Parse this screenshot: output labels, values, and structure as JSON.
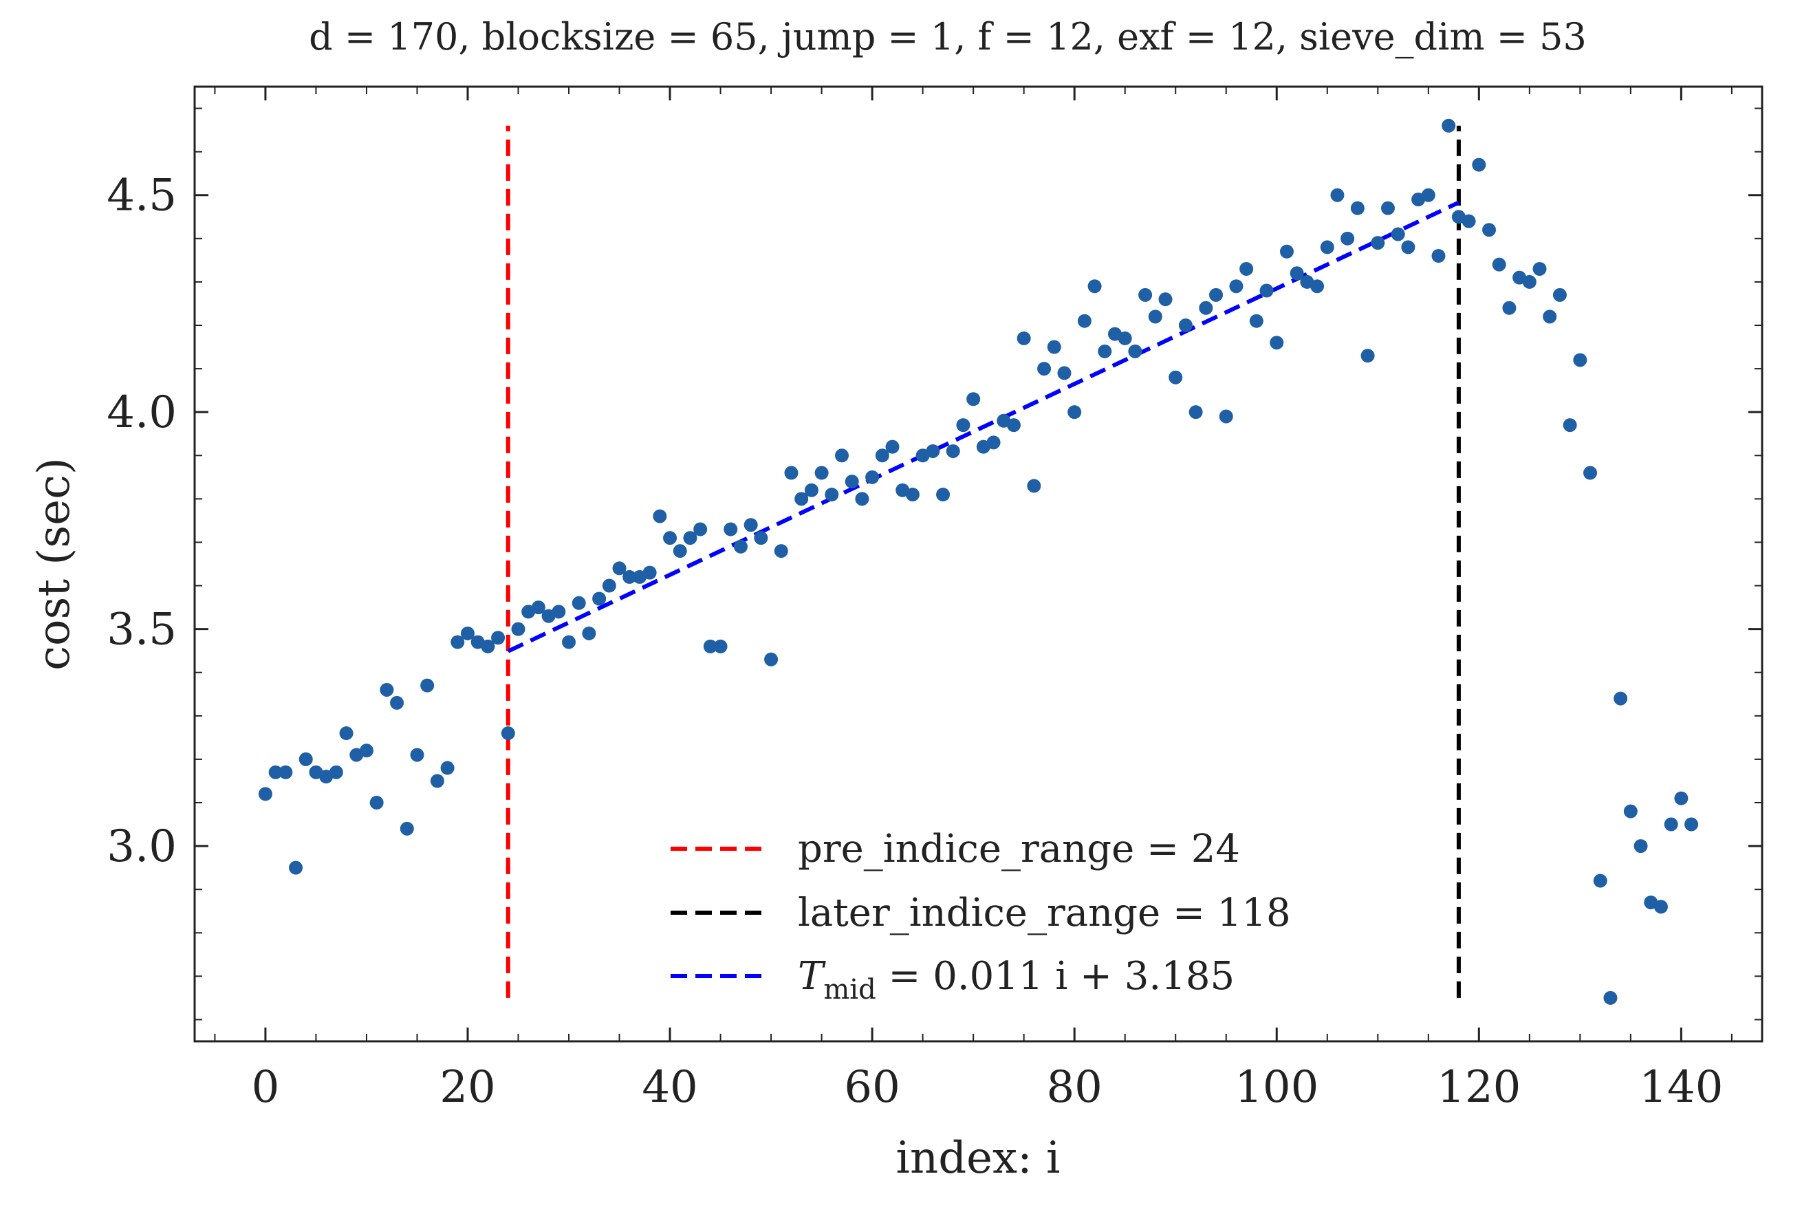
{
  "chart_data": {
    "type": "scatter",
    "title": "d = 170, blocksize = 65, jump = 1, f = 12, exf = 12, sieve_dim = 53",
    "xlabel": "index: i",
    "ylabel": "cost (sec)",
    "xlim": [
      -7,
      148
    ],
    "ylim": [
      2.55,
      4.75
    ],
    "xticks": [
      0,
      20,
      40,
      60,
      80,
      100,
      120,
      140
    ],
    "xtick_labels": [
      "0",
      "20",
      "40",
      "60",
      "80",
      "100",
      "120",
      "140"
    ],
    "yticks": [
      3.0,
      3.5,
      4.0,
      4.5
    ],
    "ytick_labels": [
      "3.0",
      "3.5",
      "4.0",
      "4.5"
    ],
    "grid": false,
    "legend_position": "bottom-center",
    "series": [
      {
        "kind": "scatter",
        "color": "#1f5fa6",
        "x": [
          0,
          1,
          2,
          3,
          4,
          5,
          6,
          7,
          8,
          9,
          10,
          11,
          12,
          13,
          14,
          15,
          16,
          17,
          18,
          19,
          20,
          21,
          22,
          23,
          24,
          25,
          26,
          27,
          28,
          29,
          30,
          31,
          32,
          33,
          34,
          35,
          36,
          37,
          38,
          39,
          40,
          41,
          42,
          43,
          44,
          45,
          46,
          47,
          48,
          49,
          50,
          51,
          52,
          53,
          54,
          55,
          56,
          57,
          58,
          59,
          60,
          61,
          62,
          63,
          64,
          65,
          66,
          67,
          68,
          69,
          70,
          71,
          72,
          73,
          74,
          75,
          76,
          77,
          78,
          79,
          80,
          81,
          82,
          83,
          84,
          85,
          86,
          87,
          88,
          89,
          90,
          91,
          92,
          93,
          94,
          95,
          96,
          97,
          98,
          99,
          100,
          101,
          102,
          103,
          104,
          105,
          106,
          107,
          108,
          109,
          110,
          111,
          112,
          113,
          114,
          115,
          116,
          117,
          118,
          119,
          120,
          121,
          122,
          123,
          124,
          125,
          126,
          127,
          128,
          129,
          130,
          131,
          132,
          133,
          134,
          135,
          136,
          137,
          138,
          139,
          140,
          141
        ],
        "y": [
          3.12,
          3.17,
          3.17,
          2.95,
          3.2,
          3.17,
          3.16,
          3.17,
          3.26,
          3.21,
          3.22,
          3.1,
          3.36,
          3.33,
          3.04,
          3.21,
          3.37,
          3.15,
          3.18,
          3.47,
          3.49,
          3.47,
          3.46,
          3.48,
          3.26,
          3.5,
          3.54,
          3.55,
          3.53,
          3.54,
          3.47,
          3.56,
          3.49,
          3.57,
          3.6,
          3.64,
          3.62,
          3.62,
          3.63,
          3.76,
          3.71,
          3.68,
          3.71,
          3.73,
          3.46,
          3.46,
          3.73,
          3.69,
          3.74,
          3.71,
          3.43,
          3.68,
          3.86,
          3.8,
          3.82,
          3.86,
          3.81,
          3.9,
          3.84,
          3.8,
          3.85,
          3.9,
          3.92,
          3.82,
          3.81,
          3.9,
          3.91,
          3.81,
          3.91,
          3.97,
          4.03,
          3.92,
          3.93,
          3.98,
          3.97,
          4.17,
          3.83,
          4.1,
          4.15,
          4.09,
          4.0,
          4.21,
          4.29,
          4.14,
          4.18,
          4.17,
          4.14,
          4.27,
          4.22,
          4.26,
          4.08,
          4.2,
          4.0,
          4.24,
          4.27,
          3.99,
          4.29,
          4.33,
          4.21,
          4.28,
          4.16,
          4.37,
          4.32,
          4.3,
          4.29,
          4.38,
          4.5,
          4.4,
          4.47,
          4.13,
          4.39,
          4.47,
          4.41,
          4.38,
          4.49,
          4.5,
          4.36,
          4.66,
          4.45,
          4.44,
          4.57,
          4.42,
          4.34,
          4.24,
          4.31,
          4.3,
          4.33,
          4.22,
          4.27,
          3.97,
          4.12,
          3.86,
          2.92,
          2.65,
          3.34,
          3.08,
          3.0,
          2.87,
          2.86,
          3.05,
          3.11,
          3.05
        ]
      },
      {
        "kind": "vline",
        "name": "pre_indice_range = 24",
        "color": "#ff0000",
        "x": 24,
        "y_range": [
          2.65,
          4.66
        ]
      },
      {
        "kind": "vline",
        "name": "later_indice_range = 118",
        "color": "#000000",
        "x": 118,
        "y_range": [
          2.65,
          4.66
        ]
      },
      {
        "kind": "fit_line",
        "name": "T_mid = 0.011 i + 3.185",
        "color": "#0000ff",
        "slope": 0.011,
        "intercept": 3.185,
        "x_range": [
          24,
          118
        ]
      }
    ],
    "legend": [
      {
        "label": "pre_indice_range = 24",
        "color": "#ff0000"
      },
      {
        "label": "later_indice_range = 118",
        "color": "#000000"
      },
      {
        "label_main": "T",
        "label_sub": "mid",
        "label_rest": " = 0.011 i + 3.185",
        "color": "#0000ff"
      }
    ]
  }
}
